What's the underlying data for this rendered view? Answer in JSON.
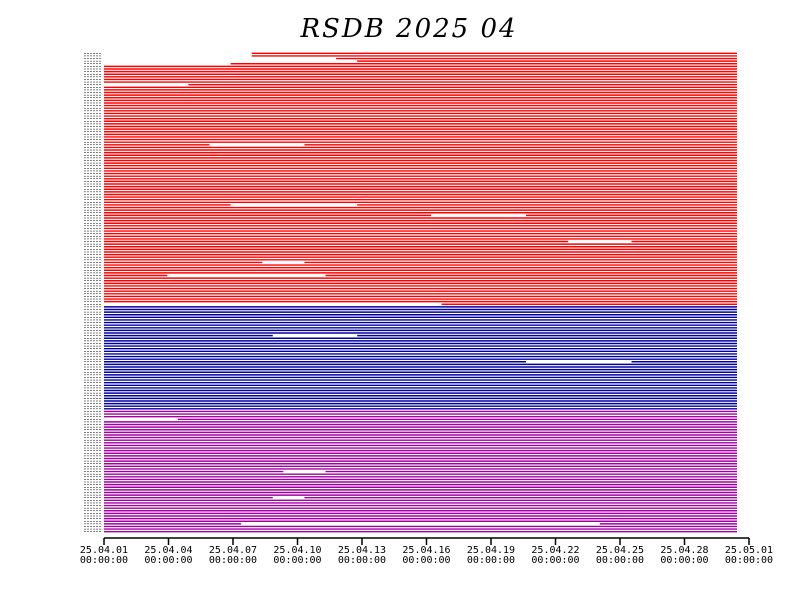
{
  "chart_data": {
    "type": "line",
    "title": "RSDB  2025  04",
    "xlabel": "",
    "ylabel": "",
    "x_tick_labels": [
      [
        "25.04.01",
        "00:00:00"
      ],
      [
        "25.04.04",
        "00:00:00"
      ],
      [
        "25.04.07",
        "00:00:00"
      ],
      [
        "25.04.10",
        "00:00:00"
      ],
      [
        "25.04.13",
        "00:00:00"
      ],
      [
        "25.04.16",
        "00:00:00"
      ],
      [
        "25.04.19",
        "00:00:00"
      ],
      [
        "25.04.22",
        "00:00:00"
      ],
      [
        "25.04.25",
        "00:00:00"
      ],
      [
        "25.04.28",
        "00:00:00"
      ],
      [
        "25.05.01",
        "00:00:00"
      ]
    ],
    "xlim_days": [
      0,
      30
    ],
    "grid": false,
    "legend": "none",
    "groups": [
      {
        "color": "#ff0000",
        "rows": 97,
        "starts_partial": [
          [
            7,
            30
          ],
          [
            7,
            30
          ],
          [
            11,
            30
          ],
          [
            12,
            30
          ],
          [
            6,
            30
          ],
          [
            0,
            30
          ]
        ]
      },
      {
        "color": "#00009f",
        "rows": 40,
        "starts_partial": [
          [
            0,
            30
          ]
        ]
      },
      {
        "color": "#9f009f",
        "rows": 47,
        "starts_partial": [
          [
            0,
            30
          ]
        ]
      }
    ],
    "gaps": [
      {
        "row": 12,
        "from": 0.0,
        "to": 4.0
      },
      {
        "row": 35,
        "from": 5.0,
        "to": 9.5
      },
      {
        "row": 58,
        "from": 6.0,
        "to": 12.0
      },
      {
        "row": 62,
        "from": 15.5,
        "to": 20.0
      },
      {
        "row": 72,
        "from": 22.0,
        "to": 25.0
      },
      {
        "row": 80,
        "from": 7.5,
        "to": 9.5
      },
      {
        "row": 85,
        "from": 3.0,
        "to": 10.5
      },
      {
        "row": 96,
        "from": 0.0,
        "to": 16.0
      },
      {
        "row": 108,
        "from": 8.0,
        "to": 12.0
      },
      {
        "row": 118,
        "from": 20.0,
        "to": 25.0
      },
      {
        "row": 140,
        "from": 0.0,
        "to": 3.5
      },
      {
        "row": 160,
        "from": 8.5,
        "to": 10.5
      },
      {
        "row": 170,
        "from": 8.0,
        "to": 9.5
      },
      {
        "row": 180,
        "from": 6.5,
        "to": 23.5
      }
    ]
  }
}
